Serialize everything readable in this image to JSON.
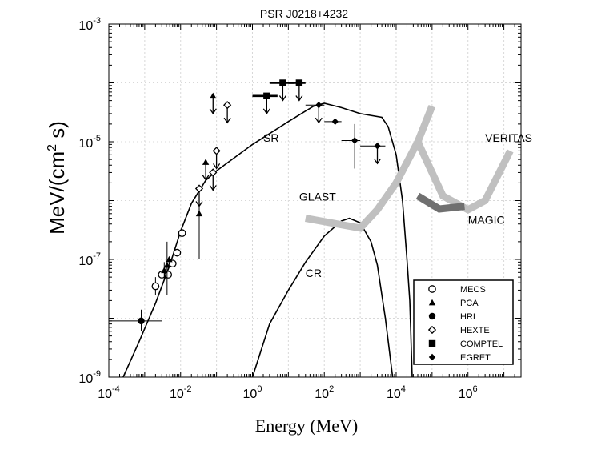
{
  "chart_data": {
    "type": "line",
    "title": "PSR J0218+4232",
    "xlabel": "Energy (MeV)",
    "ylabel": "MeV/(cm^2 s)",
    "xscale": "log",
    "yscale": "log",
    "xlim": [
      0.0001,
      30000000
    ],
    "ylim": [
      1e-09,
      0.001
    ],
    "x_ticks": [
      {
        "base": "10",
        "exp": "-4",
        "value": 0.0001
      },
      {
        "base": "10",
        "exp": "-2",
        "value": 0.01
      },
      {
        "base": "10",
        "exp": "0",
        "value": 1
      },
      {
        "base": "10",
        "exp": "2",
        "value": 100
      },
      {
        "base": "10",
        "exp": "4",
        "value": 10000
      },
      {
        "base": "10",
        "exp": "6",
        "value": 1000000
      }
    ],
    "y_ticks": [
      {
        "base": "10",
        "exp": "-3",
        "value": 0.001
      },
      {
        "base": "10",
        "exp": "-5",
        "value": 1e-05
      },
      {
        "base": "10",
        "exp": "-7",
        "value": 1e-07
      },
      {
        "base": "10",
        "exp": "-9",
        "value": 1e-09
      }
    ],
    "series": [
      {
        "name": "SR",
        "kind": "model",
        "color": "#000000",
        "points": [
          [
            0.00025,
            1e-09
          ],
          [
            0.0007,
            4e-09
          ],
          [
            0.002,
            1.8e-08
          ],
          [
            0.005,
            8e-08
          ],
          [
            0.01,
            3e-07
          ],
          [
            0.02,
            9e-07
          ],
          [
            0.05,
            2.2e-06
          ],
          [
            0.1,
            3.2e-06
          ],
          [
            1,
            9e-06
          ],
          [
            10,
            2.2e-05
          ],
          [
            50,
            4e-05
          ],
          [
            100,
            4.5e-05
          ],
          [
            300,
            3.8e-05
          ],
          [
            1000,
            3e-05
          ],
          [
            4000,
            2.6e-05
          ],
          [
            6000,
            1.8e-05
          ],
          [
            10000,
            6e-06
          ],
          [
            15000,
            1e-06
          ],
          [
            20000,
            1e-07
          ],
          [
            24000,
            2e-08
          ],
          [
            28000,
            1e-09
          ]
        ]
      },
      {
        "name": "CR",
        "kind": "model",
        "color": "#000000",
        "points": [
          [
            1,
            1e-09
          ],
          [
            3,
            8e-09
          ],
          [
            10,
            3e-08
          ],
          [
            30,
            9e-08
          ],
          [
            100,
            2.5e-07
          ],
          [
            300,
            4.5e-07
          ],
          [
            500,
            5e-07
          ],
          [
            1000,
            4.2e-07
          ],
          [
            2000,
            2e-07
          ],
          [
            3000,
            8e-08
          ],
          [
            5000,
            1e-08
          ],
          [
            8000,
            1e-09
          ]
        ]
      },
      {
        "name": "GLAST",
        "kind": "sensitivity",
        "color": "#c0c0c0",
        "points": [
          [
            30,
            5e-07
          ],
          [
            1000,
            3.4e-07
          ],
          [
            3000,
            7e-07
          ],
          [
            10000,
            2e-06
          ],
          [
            40000,
            1e-05
          ],
          [
            100000,
            4e-05
          ]
        ]
      },
      {
        "name": "VERITAS",
        "kind": "sensitivity",
        "color": "#c0c0c0",
        "points": [
          [
            40000,
            1e-05
          ],
          [
            200000,
            1.2e-06
          ],
          [
            1000000,
            7e-07
          ],
          [
            3000000,
            1e-06
          ],
          [
            15000000,
            7e-06
          ]
        ]
      },
      {
        "name": "MAGIC",
        "kind": "sensitivity",
        "color": "#707070",
        "points": [
          [
            40000,
            1.2e-06
          ],
          [
            160000,
            7.2e-07
          ],
          [
            800000,
            8e-07
          ]
        ]
      }
    ],
    "curve_labels": [
      {
        "text": "SR",
        "x": 2,
        "y": 1e-05
      },
      {
        "text": "CR",
        "x": 30,
        "y": 5e-08
      },
      {
        "text": "GLAST",
        "x": 20,
        "y": 1e-06
      },
      {
        "text": "VERITAS",
        "x": 3000000,
        "y": 1e-05
      },
      {
        "text": "MAGIC",
        "x": 1000000,
        "y": 4e-07
      }
    ],
    "data_points": [
      {
        "instrument": "HRI",
        "marker": "circle-filled",
        "x": 0.0008,
        "y": 9e-09,
        "xerr": [
          0.0001,
          0.003
        ],
        "yerr": [
          6e-09,
          1.4e-08
        ]
      },
      {
        "instrument": "MECS",
        "marker": "circle-open",
        "x": 0.002,
        "y": 3.5e-08,
        "yerr": [
          2.5e-08,
          5e-08
        ]
      },
      {
        "instrument": "MECS",
        "marker": "circle-open",
        "x": 0.003,
        "y": 5.5e-08
      },
      {
        "instrument": "MECS",
        "marker": "circle-open",
        "x": 0.0045,
        "y": 5.5e-08
      },
      {
        "instrument": "MECS",
        "marker": "circle-open",
        "x": 0.006,
        "y": 8.5e-08
      },
      {
        "instrument": "MECS",
        "marker": "circle-open",
        "x": 0.008,
        "y": 1.3e-07
      },
      {
        "instrument": "MECS",
        "marker": "circle-open",
        "x": 0.011,
        "y": 2.8e-07
      },
      {
        "instrument": "PCA",
        "marker": "triangle-filled",
        "x": 0.0035,
        "y": 6.5e-08,
        "yerr": [
          4.5e-08,
          9e-08
        ]
      },
      {
        "instrument": "PCA",
        "marker": "triangle-filled",
        "x": 0.0042,
        "y": 8e-08,
        "yerr": [
          2.5e-08,
          2e-07
        ]
      },
      {
        "instrument": "PCA",
        "marker": "triangle-filled",
        "x": 0.0048,
        "y": 1e-07
      },
      {
        "instrument": "PCA",
        "marker": "triangle-filled",
        "x": 0.033,
        "y": 6e-07,
        "yerr": [
          1e-07,
          1.5e-06
        ]
      },
      {
        "instrument": "HEXTE",
        "marker": "diamond-open",
        "x": 0.033,
        "y": 1.6e-06,
        "upper_limit": true
      },
      {
        "instrument": "HEXTE",
        "marker": "diamond-open",
        "x": 0.08,
        "y": 3e-06,
        "upper_limit": true
      },
      {
        "instrument": "HEXTE",
        "marker": "diamond-open",
        "x": 0.1,
        "y": 7e-06,
        "upper_limit": true
      },
      {
        "instrument": "HEXTE",
        "marker": "diamond-open",
        "x": 0.2,
        "y": 4.2e-05,
        "upper_limit": true
      },
      {
        "instrument": "HEXTE",
        "marker": "triangle-filled",
        "x": 0.05,
        "y": 4.5e-06,
        "upper_limit": true
      },
      {
        "instrument": "HEXTE",
        "marker": "triangle-filled",
        "x": 0.08,
        "y": 6e-05,
        "upper_limit": true
      },
      {
        "instrument": "COMPTEL",
        "marker": "square-filled",
        "x": 2.5,
        "y": 6e-05,
        "xerr": [
          1,
          5
        ],
        "upper_limit": true
      },
      {
        "instrument": "COMPTEL",
        "marker": "square-filled",
        "x": 7,
        "y": 0.0001,
        "xerr": [
          3,
          15
        ],
        "upper_limit": true
      },
      {
        "instrument": "COMPTEL",
        "marker": "square-filled",
        "x": 20,
        "y": 0.0001,
        "xerr": [
          10,
          30
        ],
        "upper_limit": true
      },
      {
        "instrument": "EGRET",
        "marker": "diamond-filled",
        "x": 70,
        "y": 4.2e-05,
        "xerr": [
          30,
          100
        ],
        "upper_limit": true
      },
      {
        "instrument": "EGRET",
        "marker": "diamond-filled",
        "x": 200,
        "y": 2.2e-05,
        "xerr": [
          100,
          300
        ],
        "yerr": [
          2e-05,
          2.4e-05
        ]
      },
      {
        "instrument": "EGRET",
        "marker": "diamond-filled",
        "x": 700,
        "y": 1.05e-05,
        "xerr": [
          300,
          1000
        ],
        "yerr": [
          3.5e-06,
          2e-05
        ]
      },
      {
        "instrument": "EGRET",
        "marker": "diamond-filled",
        "x": 3000,
        "y": 8.5e-06,
        "xerr": [
          1000,
          5000
        ],
        "upper_limit": true
      }
    ],
    "legend": {
      "position": "bottom-right",
      "entries": [
        {
          "marker": "circle-open",
          "label": "MECS"
        },
        {
          "marker": "triangle-filled",
          "label": "PCA"
        },
        {
          "marker": "circle-filled",
          "label": "HRI"
        },
        {
          "marker": "diamond-open",
          "label": "HEXTE"
        },
        {
          "marker": "square-filled",
          "label": "COMPTEL"
        },
        {
          "marker": "diamond-filled",
          "label": "EGRET"
        }
      ]
    }
  }
}
